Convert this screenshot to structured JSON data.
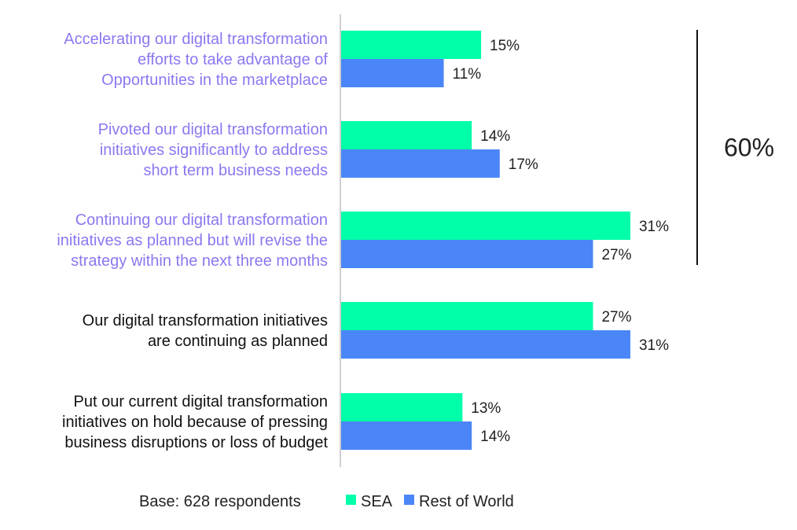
{
  "chart_data": {
    "type": "bar",
    "orientation": "horizontal",
    "categories": [
      [
        "Accelerating our digital transformation",
        "efforts to take advantage of",
        "Opportunities in the marketplace"
      ],
      [
        "Pivoted our digital transformation",
        "initiatives significantly to address",
        "short term business needs"
      ],
      [
        "Continuing our digital transformation",
        "initiatives as planned but will revise the",
        "strategy within the next three months"
      ],
      [
        "Our digital transformation initiatives",
        "are continuing as planned"
      ],
      [
        "Put our current digital transformation",
        "initiatives on hold because of pressing",
        "business disruptions or loss of budget"
      ]
    ],
    "category_highlight": [
      true,
      true,
      true,
      false,
      false
    ],
    "series": [
      {
        "name": "SEA",
        "color": "#00ffa8",
        "values": [
          15,
          14,
          31,
          27,
          13
        ]
      },
      {
        "name": "Rest of World",
        "color": "#4a86f7",
        "values": [
          11,
          17,
          27,
          31,
          14
        ]
      }
    ],
    "value_labels": [
      [
        "15%",
        "14%",
        "31%",
        "27%",
        "13%"
      ],
      [
        "11%",
        "17%",
        "27%",
        "31%",
        "14%"
      ]
    ],
    "xlim": [
      0,
      40
    ],
    "grid": false,
    "annotation": {
      "text": "60%",
      "spans_categories": [
        0,
        1,
        2
      ]
    },
    "legend_position": "bottom",
    "base_note": "Base: 628 respondents",
    "colors": {
      "highlight_text": "#8b78f0",
      "normal_text": "#111111",
      "axis": "#cfcfcf",
      "bracket": "#111111"
    }
  }
}
